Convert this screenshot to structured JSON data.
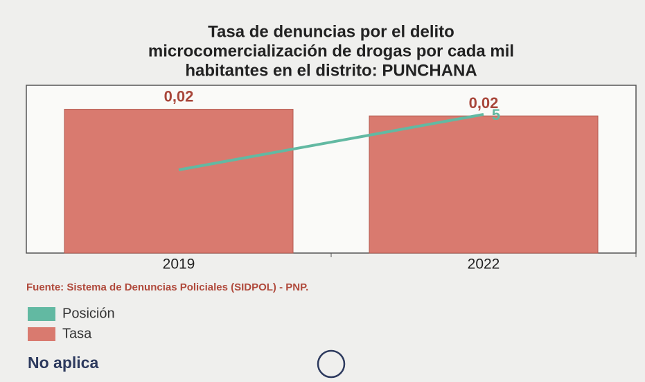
{
  "chart_data": {
    "type": "bar",
    "title": [
      "Tasa de denuncias por el delito",
      "microcomercialización de drogas por cada mil",
      "habitantes en el distrito: PUNCHANA"
    ],
    "categories": [
      "2019",
      "2022"
    ],
    "series": [
      {
        "name": "Tasa",
        "type": "bar",
        "color": "#d97a6f",
        "values": [
          0.0216,
          0.0206
        ],
        "value_labels": [
          "0,02",
          "0,02"
        ]
      },
      {
        "name": "Posición",
        "type": "line",
        "axis": "y2",
        "color": "#62b9a2",
        "values": [
          3,
          5
        ],
        "show_labels": [
          false,
          true
        ]
      }
    ],
    "ylim": [
      0,
      0.0252
    ],
    "y2lim": [
      0,
      6.05
    ],
    "source": "Fuente: Sistema de Denuncias Policiales (SIDPOL) - PNP.",
    "note": "No aplica"
  }
}
